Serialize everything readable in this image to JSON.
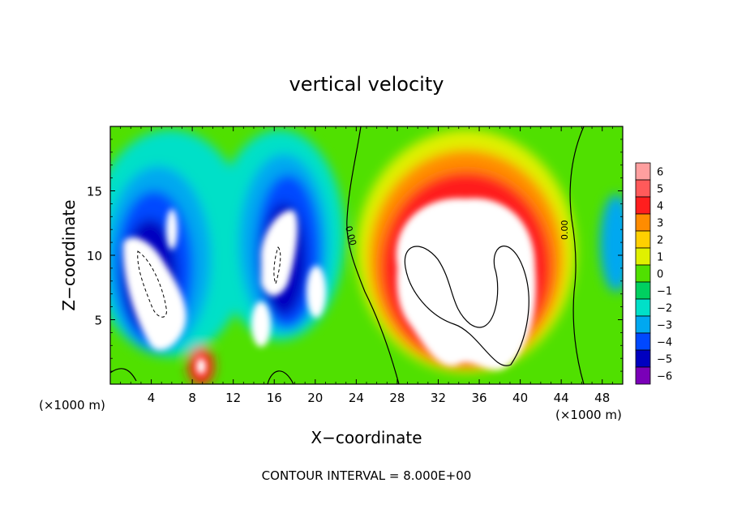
{
  "chart_data": {
    "type": "heatmap",
    "title": "vertical velocity",
    "xlabel": "X−coordinate",
    "ylabel": "Z−coordinate",
    "x_unit_left": "(×1000 m)",
    "x_unit_right": "(×1000 m)",
    "xlim": [
      0,
      50
    ],
    "ylim": [
      0,
      20
    ],
    "x_ticks": [
      4,
      8,
      12,
      16,
      20,
      24,
      28,
      32,
      36,
      40,
      44,
      48
    ],
    "x_tick_labels": [
      "4",
      "8",
      "12",
      "16",
      "20",
      "24",
      "28",
      "32",
      "36",
      "40",
      "44",
      "48"
    ],
    "y_ticks": [
      5,
      10,
      15
    ],
    "y_tick_labels": [
      "5",
      "10",
      "15"
    ],
    "colorbar": {
      "levels": [
        6,
        5,
        4,
        3,
        2,
        1,
        0,
        -1,
        -2,
        -3,
        -4,
        -5,
        -6
      ],
      "labels": [
        "6",
        "5",
        "4",
        "3",
        "2",
        "1",
        "0",
        "−1",
        "−2",
        "−3",
        "−4",
        "−5",
        "−6"
      ],
      "colors": [
        "#ff9f9f",
        "#ff5a5a",
        "#ff1e1e",
        "#ff8c00",
        "#ffd000",
        "#e0f000",
        "#50e000",
        "#00d060",
        "#00e0c8",
        "#00a8f0",
        "#0048ff",
        "#0000c0",
        "#7a00b8"
      ]
    },
    "contour_labels": [
      "0.00",
      "0.00"
    ],
    "features": [
      {
        "kind": "updraft",
        "region": "x 24–46, z 0–17",
        "peak": ">6"
      },
      {
        "kind": "downdraft",
        "region": "x 0–22, z 2–17",
        "peak": "<−6"
      }
    ],
    "footer": "CONTOUR INTERVAL = 8.000E+00"
  }
}
